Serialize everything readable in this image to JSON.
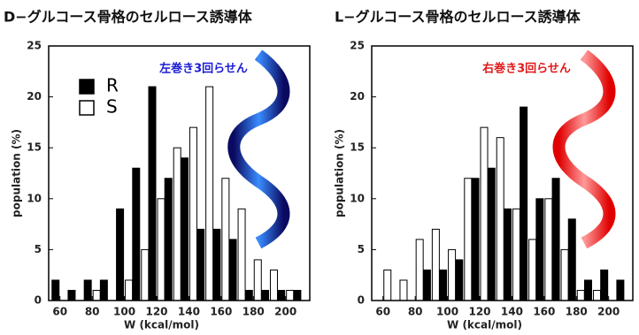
{
  "chart_data": [
    {
      "type": "bar",
      "title": "D−グルコース骨格のセルロース誘導体",
      "xlabel": "W (kcal/mol)",
      "ylabel": "population (%)",
      "annotation": "左巻き3回らせん",
      "annotation_color": "#1a1ad6",
      "legend": true,
      "x": [
        60,
        70,
        80,
        90,
        100,
        110,
        120,
        130,
        140,
        150,
        160,
        170,
        180,
        190,
        200,
        210
      ],
      "series": [
        {
          "name": "R",
          "color": "#000000",
          "values": [
            2,
            1,
            2,
            2,
            9,
            13,
            21,
            12,
            14,
            7,
            7,
            6,
            1,
            1,
            1,
            1
          ]
        },
        {
          "name": "S",
          "color": "#ffffff",
          "values": [
            0,
            0,
            1,
            0,
            2,
            5,
            10,
            15,
            17,
            21,
            12,
            9,
            4,
            3,
            1,
            0
          ]
        }
      ],
      "xlim": [
        53,
        215
      ],
      "xticks": [
        60,
        80,
        100,
        120,
        140,
        160,
        180,
        200
      ],
      "ylim": [
        0,
        25
      ],
      "yticks": [
        0,
        5,
        10,
        15,
        20,
        25
      ]
    },
    {
      "type": "bar",
      "title": "L−グルコース骨格のセルロース誘導体",
      "xlabel": "W (kcal/mol)",
      "ylabel": "population (%)",
      "annotation": "右巻き3回らせん",
      "annotation_color": "#e01818",
      "legend": false,
      "x": [
        60,
        70,
        80,
        90,
        100,
        110,
        120,
        130,
        140,
        150,
        160,
        170,
        180,
        190,
        200,
        210
      ],
      "series": [
        {
          "color": "#000000",
          "values": [
            0,
            0,
            0,
            3,
            3,
            4,
            12,
            13,
            9,
            19,
            10,
            12,
            8,
            2,
            3,
            2
          ]
        },
        {
          "color": "#ffffff",
          "values": [
            3,
            2,
            6,
            7,
            5,
            12,
            17,
            16,
            9,
            6,
            10,
            5,
            1,
            1,
            0,
            0
          ]
        }
      ],
      "xlim": [
        53,
        215
      ],
      "xticks": [
        60,
        80,
        100,
        120,
        140,
        160,
        180,
        200
      ],
      "ylim": [
        0,
        25
      ],
      "yticks": [
        0,
        5,
        10,
        15,
        20,
        25
      ]
    }
  ]
}
